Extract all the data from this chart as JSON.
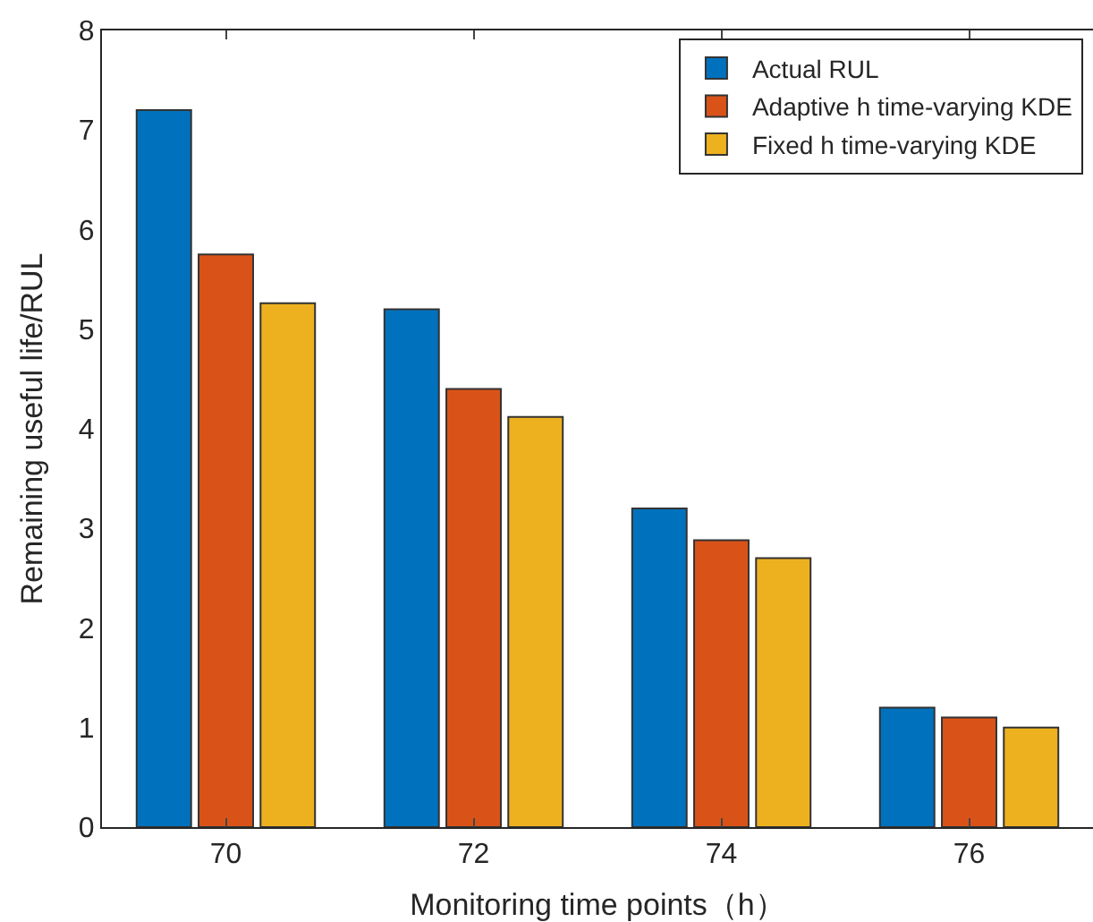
{
  "chart_data": {
    "type": "bar",
    "xlabel": "Monitoring time points（h）",
    "ylabel": "Remaining useful life/RUL",
    "categories": [
      "70",
      "72",
      "74",
      "76"
    ],
    "series": [
      {
        "name": "Actual RUL",
        "color": "#0072bd",
        "values": [
          7.2,
          5.2,
          3.2,
          1.2
        ]
      },
      {
        "name": "Adaptive h time-varying KDE",
        "color": "#d95319",
        "values": [
          5.75,
          4.4,
          2.88,
          1.1
        ]
      },
      {
        "name": "Fixed h time-varying KDE",
        "color": "#edb120",
        "values": [
          5.26,
          4.12,
          2.7,
          1.0
        ]
      }
    ],
    "ylim": [
      0,
      8
    ],
    "yticks": [
      0,
      1,
      2,
      3,
      4,
      5,
      6,
      7,
      8
    ],
    "legend": "top right"
  }
}
